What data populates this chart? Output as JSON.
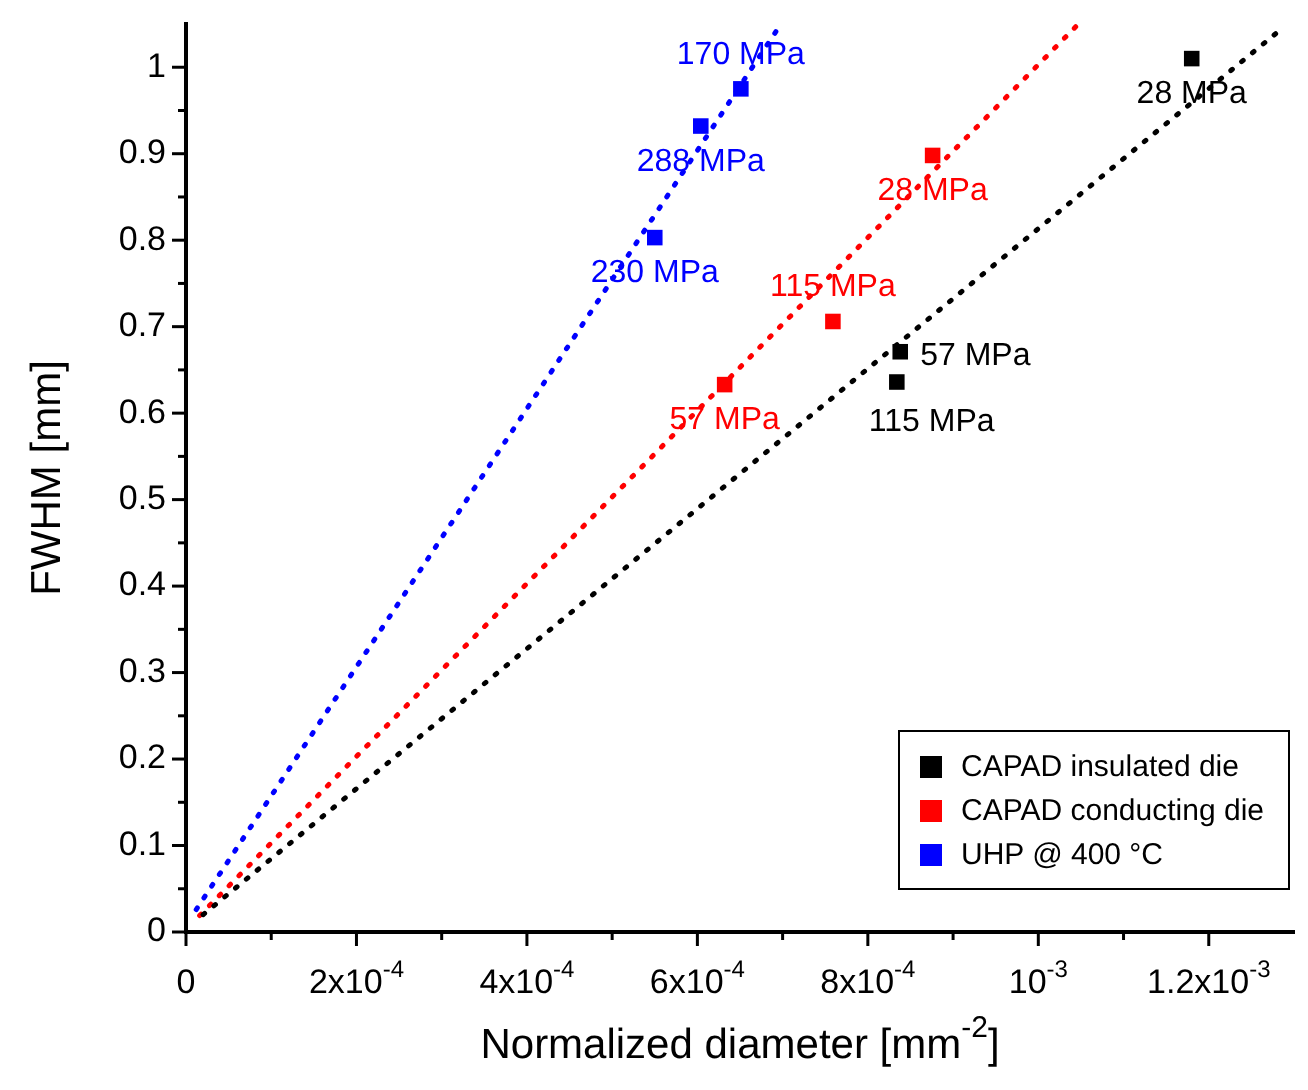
{
  "chart_data": {
    "type": "scatter",
    "xlabel": "Normalized diameter [mm$^{-2}$]",
    "ylabel": "FWHM [mm]",
    "xlim": [
      0,
      0.0013
    ],
    "ylim": [
      0,
      1.05
    ],
    "xticks": [
      0,
      {
        "value": 0.0001,
        "label": null
      },
      {
        "value": 0.0002,
        "label": "2x10$^{-4}$"
      },
      {
        "value": 0.0003,
        "label": null
      },
      {
        "value": 0.0004,
        "label": "4x10$^{-4}$"
      },
      {
        "value": 0.0005,
        "label": null
      },
      {
        "value": 0.0006,
        "label": "6x10$^{-4}$"
      },
      {
        "value": 0.0007,
        "label": null
      },
      {
        "value": 0.0008,
        "label": "8x10$^{-4}$"
      },
      {
        "value": 0.0009,
        "label": null
      },
      {
        "value": 0.001,
        "label": "10$^{-3}$"
      },
      {
        "value": 0.0011,
        "label": null
      },
      {
        "value": 0.0012,
        "label": "1.2x10$^{-3}$"
      }
    ],
    "yticks": [
      0,
      {
        "value": 0.05,
        "label": null
      },
      0.1,
      {
        "value": 0.15,
        "label": null
      },
      0.2,
      {
        "value": 0.25,
        "label": null
      },
      0.3,
      {
        "value": 0.35,
        "label": null
      },
      0.4,
      {
        "value": 0.45,
        "label": null
      },
      0.5,
      {
        "value": 0.55,
        "label": null
      },
      0.6,
      {
        "value": 0.65,
        "label": null
      },
      0.7,
      {
        "value": 0.75,
        "label": null
      },
      0.8,
      {
        "value": 0.85,
        "label": null
      },
      0.9,
      {
        "value": 0.95,
        "label": null
      },
      1
    ],
    "annotations": [
      {
        "text": "28 MPa",
        "x": 0.00118,
        "y": 1.01
      },
      {
        "text": "57 MPa",
        "x": 0.000838,
        "y": 0.671
      },
      {
        "text": "115 MPa",
        "x": 0.000834,
        "y": 0.636
      },
      {
        "text": "28 MPa",
        "x": 0.000876,
        "y": 0.898
      },
      {
        "text": "115 MPa",
        "x": 0.000759,
        "y": 0.706
      },
      {
        "text": "57 MPa",
        "x": 0.000632,
        "y": 0.633
      },
      {
        "text": "170 MPa",
        "x": 0.000651,
        "y": 0.975
      },
      {
        "text": "288 MPa",
        "x": 0.000604,
        "y": 0.932
      },
      {
        "text": "230 MPa",
        "x": 0.00055,
        "y": 0.803
      }
    ],
    "grid": false,
    "legend": "bottom right",
    "marker": "square",
    "series": [
      {
        "name": "CAPAD insulated die",
        "color": "#000000",
        "x": [
          0.00118,
          0.000838,
          0.000834
        ],
        "values": [
          1.01,
          0.671,
          0.636
        ]
      },
      {
        "name": "CAPAD conducting die",
        "color": "#ff0000",
        "x": [
          0.000876,
          0.000759,
          0.000632
        ],
        "values": [
          0.898,
          0.706,
          0.633
        ]
      },
      {
        "name": "UHP @ 400 °C",
        "color": "#0000ff",
        "x": [
          0.000651,
          0.000604,
          0.00055
        ],
        "values": [
          0.975,
          0.932,
          0.803
        ]
      },
      {
        "type": "line",
        "color": "#000000",
        "line_style": "dotted",
        "marker": "none",
        "x": [
          2e-05,
          0.00128
        ],
        "values": [
          0.02,
          1.04
        ]
      },
      {
        "type": "line",
        "color": "#ff0000",
        "line_style": "dotted",
        "marker": "none",
        "x": [
          1.6e-05,
          0.001047
        ],
        "values": [
          0.019,
          1.05
        ]
      },
      {
        "type": "line",
        "color": "#0000ff",
        "line_style": "dotted",
        "marker": "none",
        "x": [
          1.2e-05,
          0.000698
        ],
        "values": [
          0.026,
          1.05
        ]
      }
    ]
  }
}
